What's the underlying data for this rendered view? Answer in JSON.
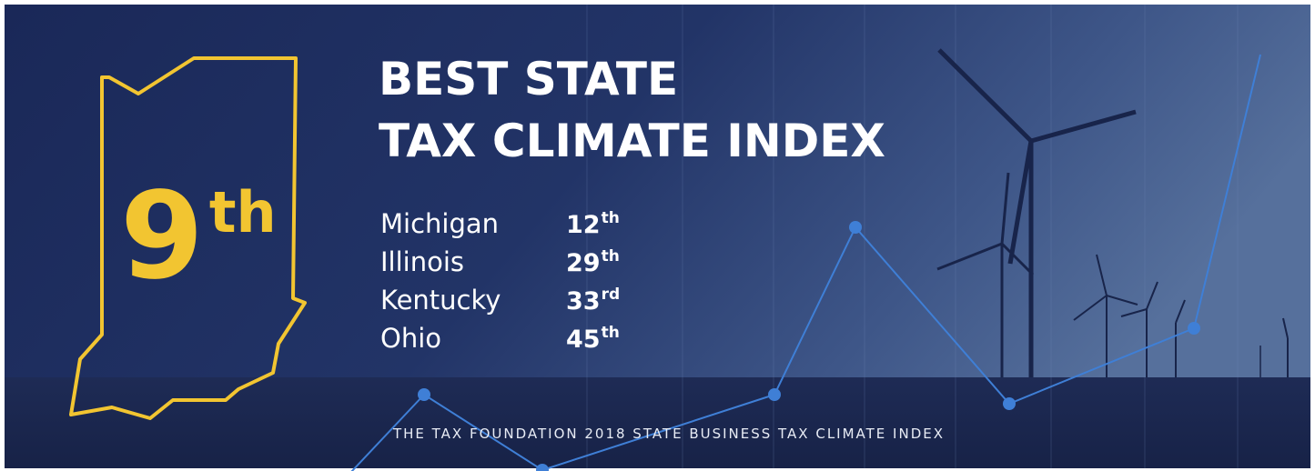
{
  "headline": {
    "lines": [
      "BEST STATE",
      "TAX CLIMATE INDEX"
    ]
  },
  "featured": {
    "rank": "9",
    "suffix": "th"
  },
  "rankings": [
    {
      "state": "Michigan",
      "rank": "12",
      "suffix": "th"
    },
    {
      "state": "Illinois",
      "rank": "29",
      "suffix": "th"
    },
    {
      "state": "Kentucky",
      "rank": "33",
      "suffix": "rd"
    },
    {
      "state": "Ohio",
      "rank": "45",
      "suffix": "th"
    }
  ],
  "footer": "THE TAX FOUNDATION 2018 STATE BUSINESS TAX CLIMATE INDEX"
}
